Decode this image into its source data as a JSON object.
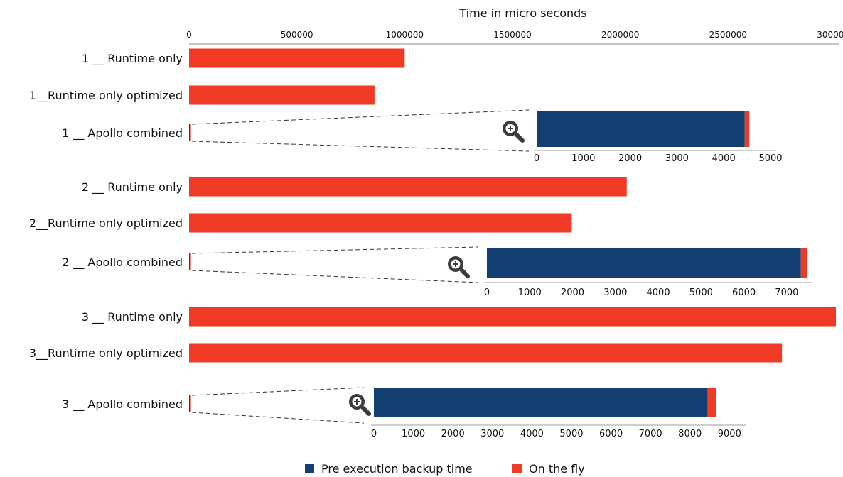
{
  "chart_data": {
    "type": "bar",
    "orientation": "horizontal",
    "stacked": true,
    "xlabel": "Time in micro seconds",
    "xlim": [
      0,
      3000000
    ],
    "x_ticks": [
      "0",
      "500000",
      "1000000",
      "1500000",
      "2000000",
      "2500000",
      "3000000"
    ],
    "x_tick_values": [
      0,
      500000,
      1000000,
      1500000,
      2000000,
      2500000,
      3000000
    ],
    "categories": [
      "1 __ Runtime only",
      "1__Runtime only optimized",
      "1 __ Apollo combined",
      "2 __ Runtime only",
      "2__Runtime only optimized",
      "2 __ Apollo combined",
      "3 __ Runtime only",
      "3__Runtime only optimized",
      "3 __ Apollo combined"
    ],
    "series": [
      {
        "name": "Pre execution backup time",
        "color": "#143f73",
        "values": [
          0,
          0,
          4450,
          0,
          0,
          7330,
          0,
          0,
          8450
        ]
      },
      {
        "name": "On the fly",
        "color": "#f03a26",
        "values": [
          1000000,
          860000,
          100,
          2030000,
          1775000,
          150,
          3000000,
          2750000,
          220
        ]
      }
    ],
    "insets": [
      {
        "category": "1 __ Apollo combined",
        "xlim": [
          0,
          5000
        ],
        "x_ticks": [
          "0",
          "1000",
          "2000",
          "3000",
          "4000",
          "5000"
        ],
        "x_tick_values": [
          0,
          1000,
          2000,
          3000,
          4000,
          5000
        ],
        "backup": 4450,
        "on_the_fly": 100
      },
      {
        "category": "2 __ Apollo combined",
        "xlim": [
          0,
          7500
        ],
        "x_ticks": [
          "0",
          "1000",
          "2000",
          "3000",
          "4000",
          "5000",
          "6000",
          "7000"
        ],
        "x_tick_values": [
          0,
          1000,
          2000,
          3000,
          4000,
          5000,
          6000,
          7000
        ],
        "backup": 7330,
        "on_the_fly": 150
      },
      {
        "category": "3 __ Apollo combined",
        "xlim": [
          0,
          9300
        ],
        "x_ticks": [
          "0",
          "1000",
          "2000",
          "3000",
          "4000",
          "5000",
          "6000",
          "7000",
          "8000",
          "9000"
        ],
        "x_tick_values": [
          0,
          1000,
          2000,
          3000,
          4000,
          5000,
          6000,
          7000,
          8000,
          9000
        ],
        "backup": 8450,
        "on_the_fly": 220
      }
    ],
    "legend": {
      "placement": "bottom-center",
      "entries": [
        "Pre execution backup time",
        "On the fly"
      ]
    },
    "icons": [
      "zoom-in-icon"
    ]
  }
}
